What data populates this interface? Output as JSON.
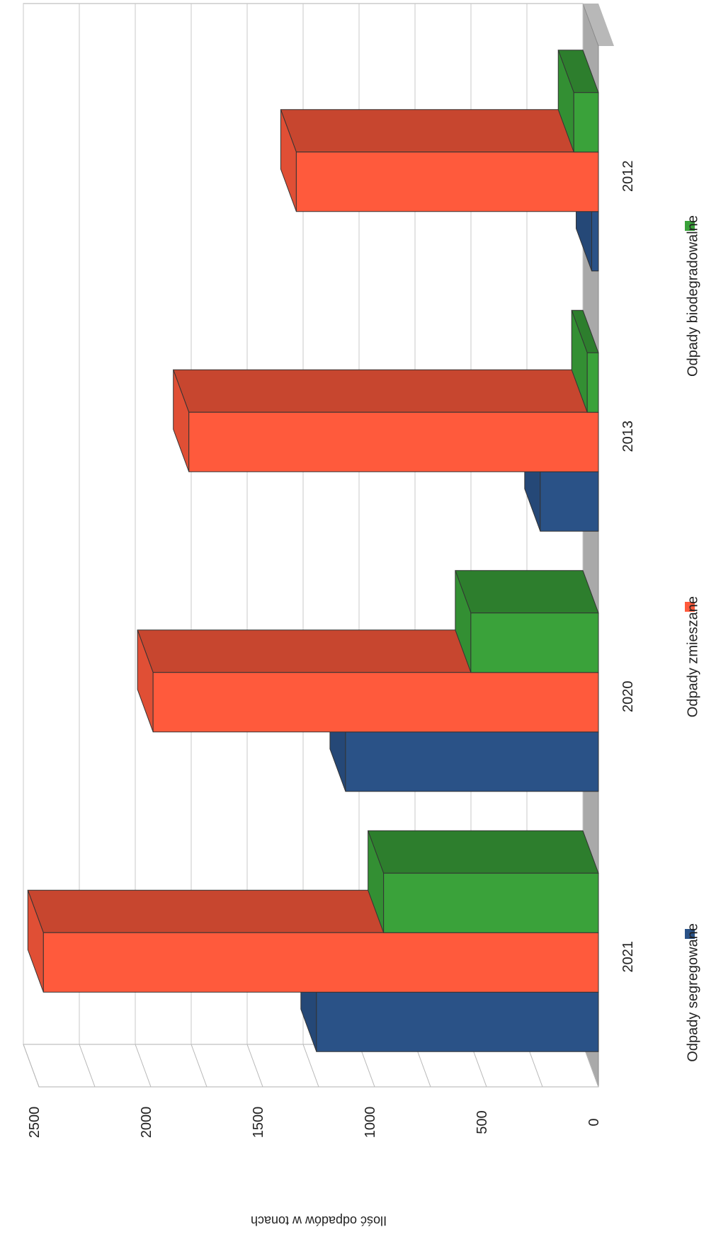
{
  "chart_data": {
    "type": "bar",
    "orientation": "rotated-90",
    "categories": [
      "2012",
      "2013",
      "2020",
      "2021"
    ],
    "ylabel": "Ilość odpadów w tonach",
    "ylim": [
      0,
      2500
    ],
    "yticks": [
      0,
      500,
      1000,
      1500,
      2000,
      2500
    ],
    "grid": true,
    "legend": "bottom",
    "series": [
      {
        "name": "Odpady segregowane",
        "values": [
          30,
          260,
          1130,
          1260
        ],
        "color": "#2a5287"
      },
      {
        "name": "Odpady zmieszane",
        "values": [
          1350,
          1830,
          1990,
          2480
        ],
        "color": "#ff5a3c"
      },
      {
        "name": "Odpady biodegradowalne",
        "values": [
          110,
          50,
          570,
          960
        ],
        "color": "#3aa23a"
      }
    ]
  }
}
